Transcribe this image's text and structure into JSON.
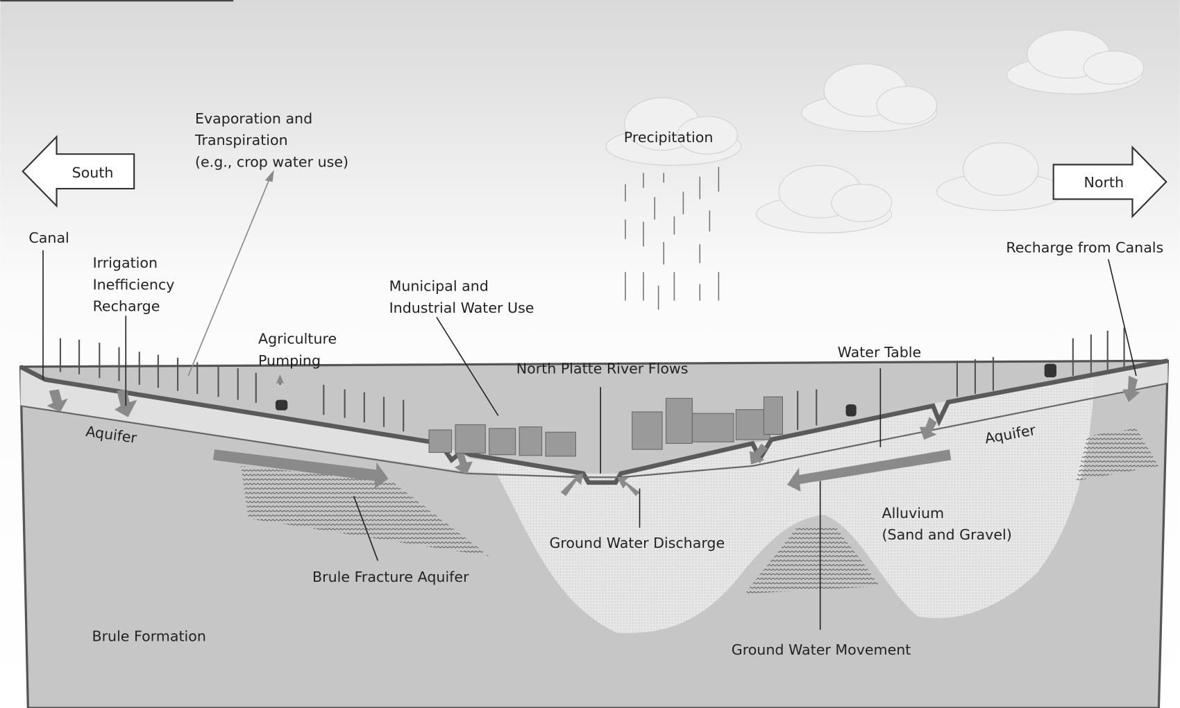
{
  "directions": {
    "left": "South",
    "right": "North"
  },
  "labels": [
    {
      "lines": [
        "Canal"
      ]
    },
    {
      "lines": [
        "Irrigation",
        "Inefficiency",
        "Recharge"
      ]
    },
    {
      "lines": [
        "Evaporation and",
        "Transpiration",
        "(e.g., crop water use)"
      ]
    },
    {
      "lines": [
        "Agriculture",
        "Pumping"
      ]
    },
    {
      "lines": [
        "Municipal and",
        "Industrial Water Use"
      ]
    },
    {
      "lines": [
        "Precipitation"
      ]
    },
    {
      "lines": [
        "North Platte River Flows"
      ]
    },
    {
      "lines": [
        "Water Table"
      ]
    },
    {
      "lines": [
        "Recharge from Canals"
      ]
    },
    {
      "lines": [
        "Aquifer"
      ]
    },
    {
      "lines": [
        "Aquifer"
      ]
    },
    {
      "lines": [
        "Alluvium",
        "(Sand and Gravel)"
      ]
    },
    {
      "lines": [
        "Ground Water Discharge"
      ]
    },
    {
      "lines": [
        "Brule Fracture Aquifer"
      ]
    },
    {
      "lines": [
        "Ground Water Movement"
      ]
    },
    {
      "lines": [
        "Brule Formation"
      ]
    }
  ]
}
